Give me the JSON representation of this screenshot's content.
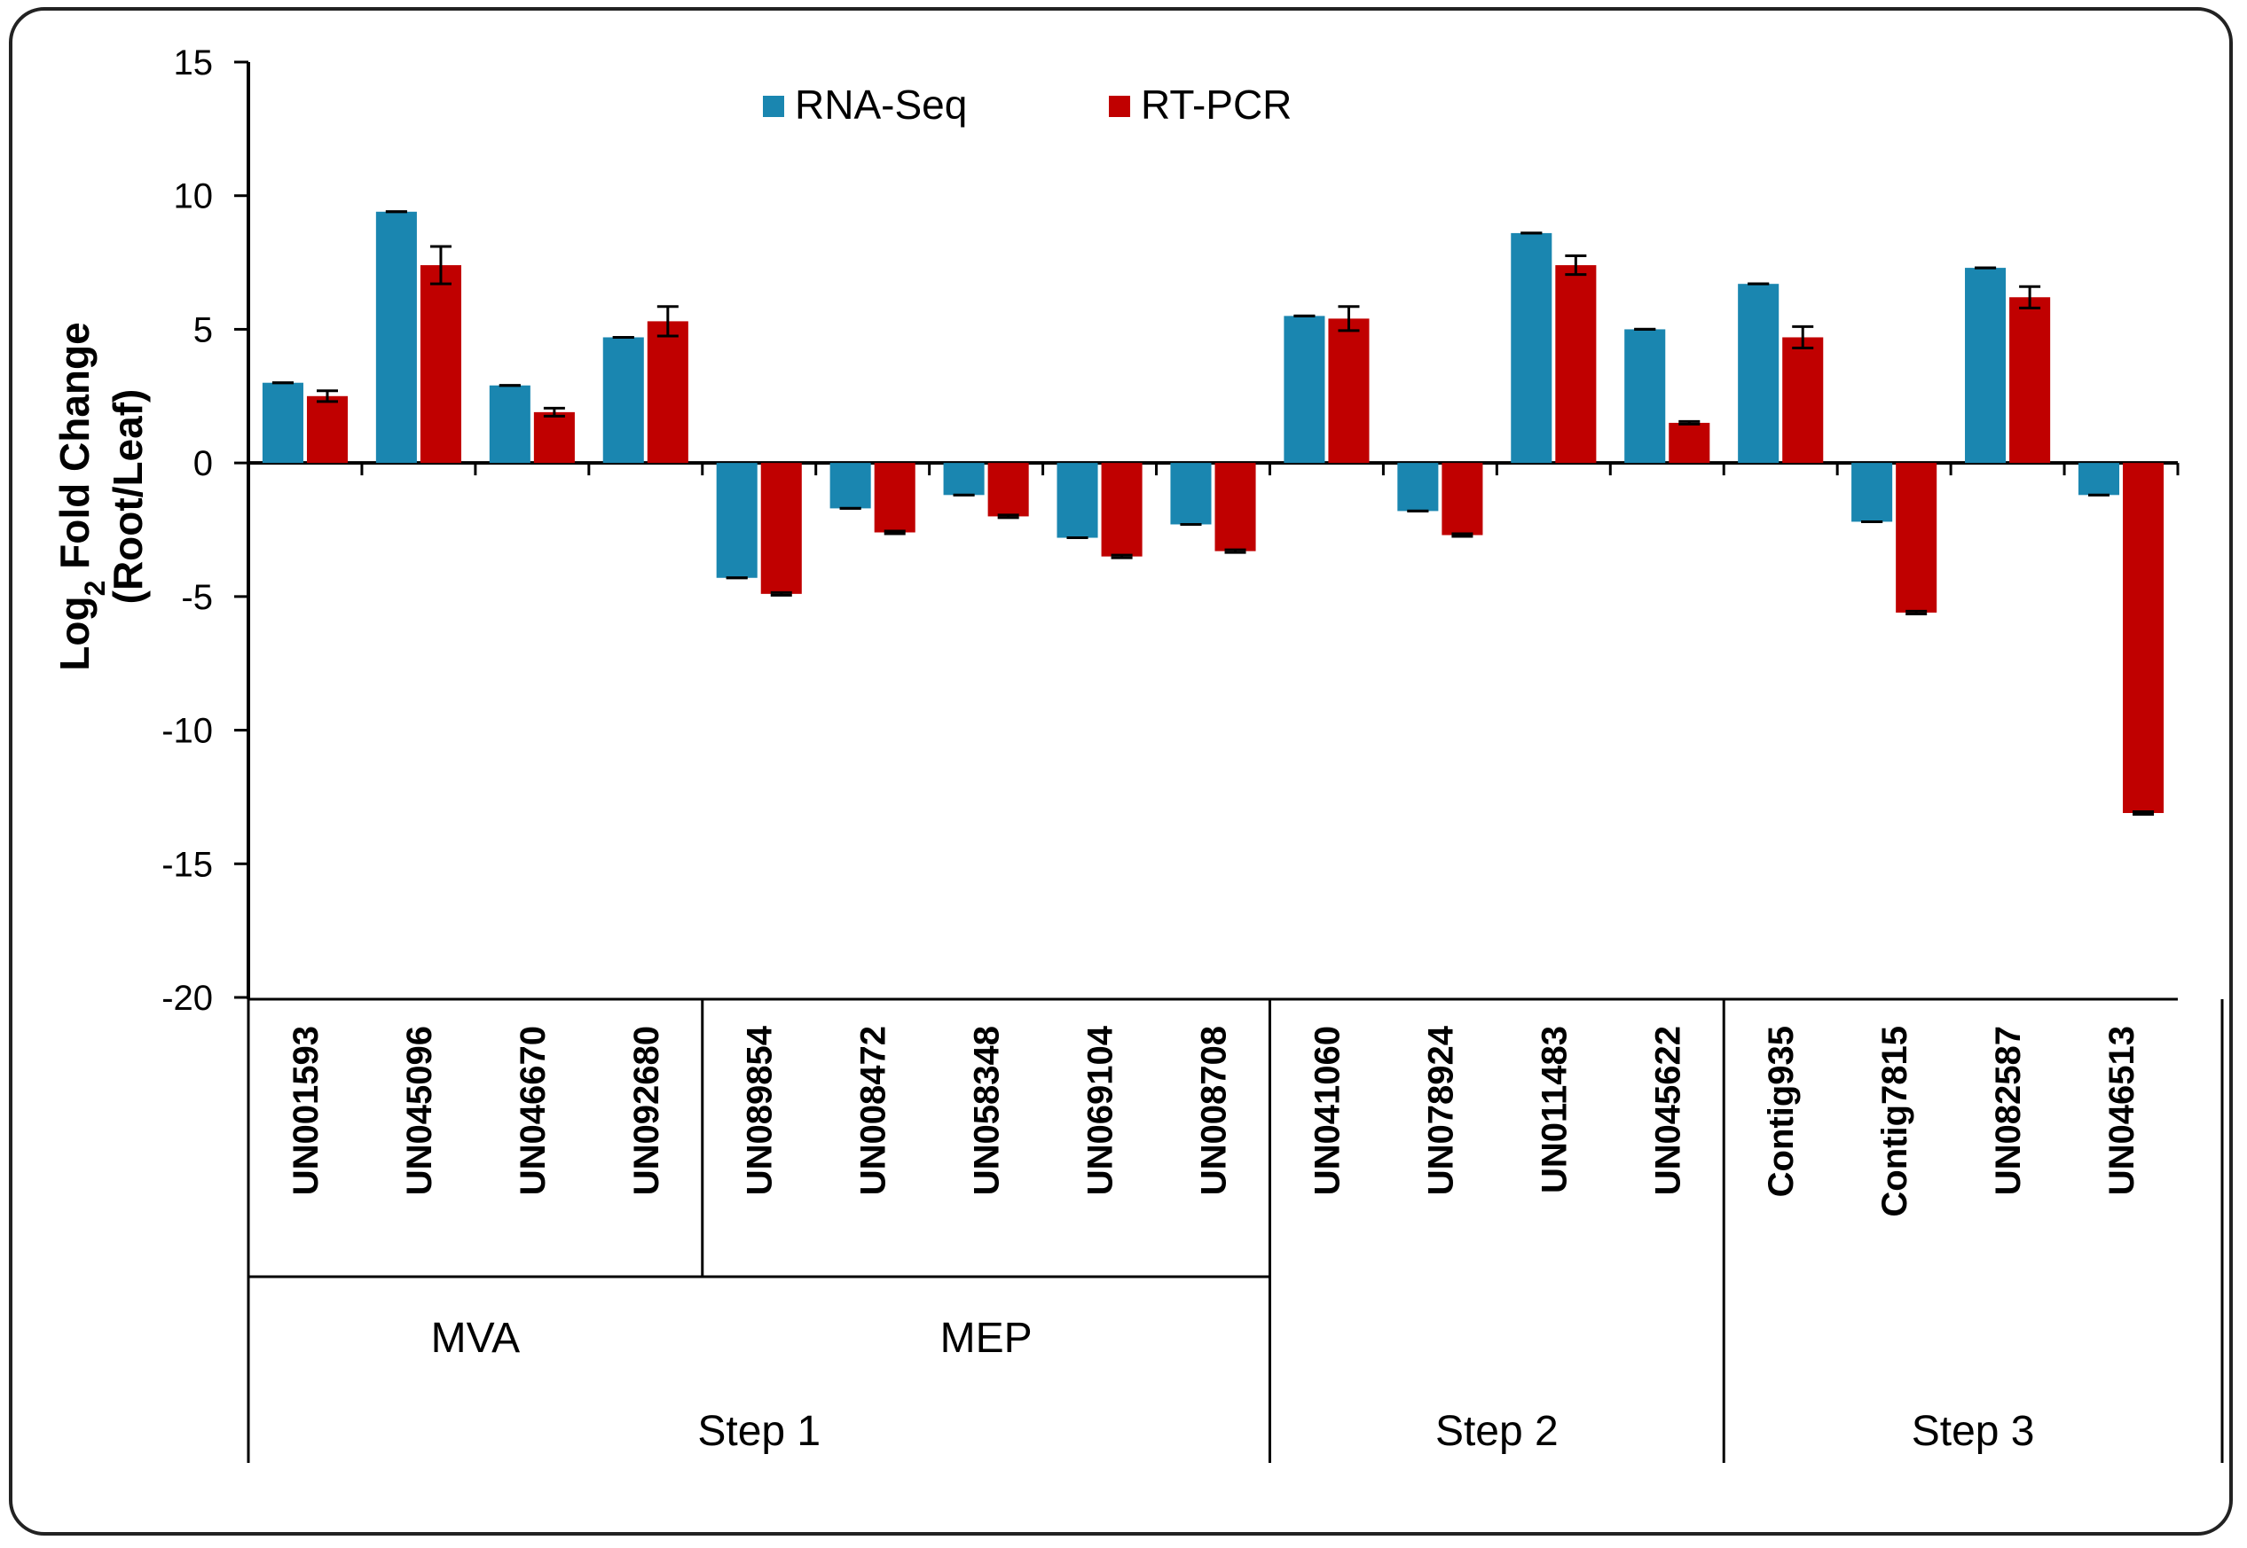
{
  "chart_data": {
    "type": "bar",
    "ylabel_line1": "Log",
    "ylabel_sub": "2",
    "ylabel_line1_rest": " Fold Change",
    "ylabel_line2": "(Root/Leaf)",
    "ylim": [
      -20,
      15
    ],
    "yticks": [
      15,
      10,
      5,
      0,
      -5,
      -10,
      -15,
      -20
    ],
    "legend_position": "top-center",
    "categories": [
      "UN001593",
      "UN045096",
      "UN046670",
      "UN092680",
      "UN089854",
      "UN008472",
      "UN058348",
      "UN069104",
      "UN008708",
      "UN041060",
      "UN078924",
      "UN011483",
      "UN045622",
      "Contig935",
      "Contig7815",
      "UN082587",
      "UN046513"
    ],
    "series": [
      {
        "name": "RNA-Seq",
        "color": "#1a86b0",
        "values": [
          3.0,
          9.4,
          2.9,
          4.7,
          -4.3,
          -1.7,
          -1.2,
          -2.8,
          -2.3,
          5.5,
          -1.8,
          8.6,
          5.0,
          6.7,
          -2.2,
          7.3,
          -1.2
        ],
        "errors": [
          0,
          0,
          0,
          0,
          0,
          0,
          0,
          0,
          0,
          0,
          0,
          0,
          0,
          0,
          0,
          0,
          0
        ]
      },
      {
        "name": "RT-PCR",
        "color": "#c00000",
        "values": [
          2.5,
          7.4,
          1.9,
          5.3,
          -4.9,
          -2.6,
          -2.0,
          -3.5,
          -3.3,
          5.4,
          -2.7,
          7.4,
          1.5,
          4.7,
          -5.6,
          6.2,
          -13.1
        ],
        "errors": [
          0.2,
          0.7,
          0.15,
          0.55,
          0.05,
          0.05,
          0.05,
          0.05,
          0.05,
          0.45,
          0.05,
          0.35,
          0.05,
          0.4,
          0.05,
          0.4,
          0.05
        ]
      }
    ],
    "groups_level1": [
      {
        "label": "MVA",
        "start": 0,
        "end": 3
      },
      {
        "label": "MEP",
        "start": 4,
        "end": 8
      }
    ],
    "groups_level2": [
      {
        "label": "Step 1",
        "start": 0,
        "end": 8
      },
      {
        "label": "Step 2",
        "start": 9,
        "end": 12
      },
      {
        "label": "Step 3",
        "start": 13,
        "end": 16
      }
    ]
  }
}
